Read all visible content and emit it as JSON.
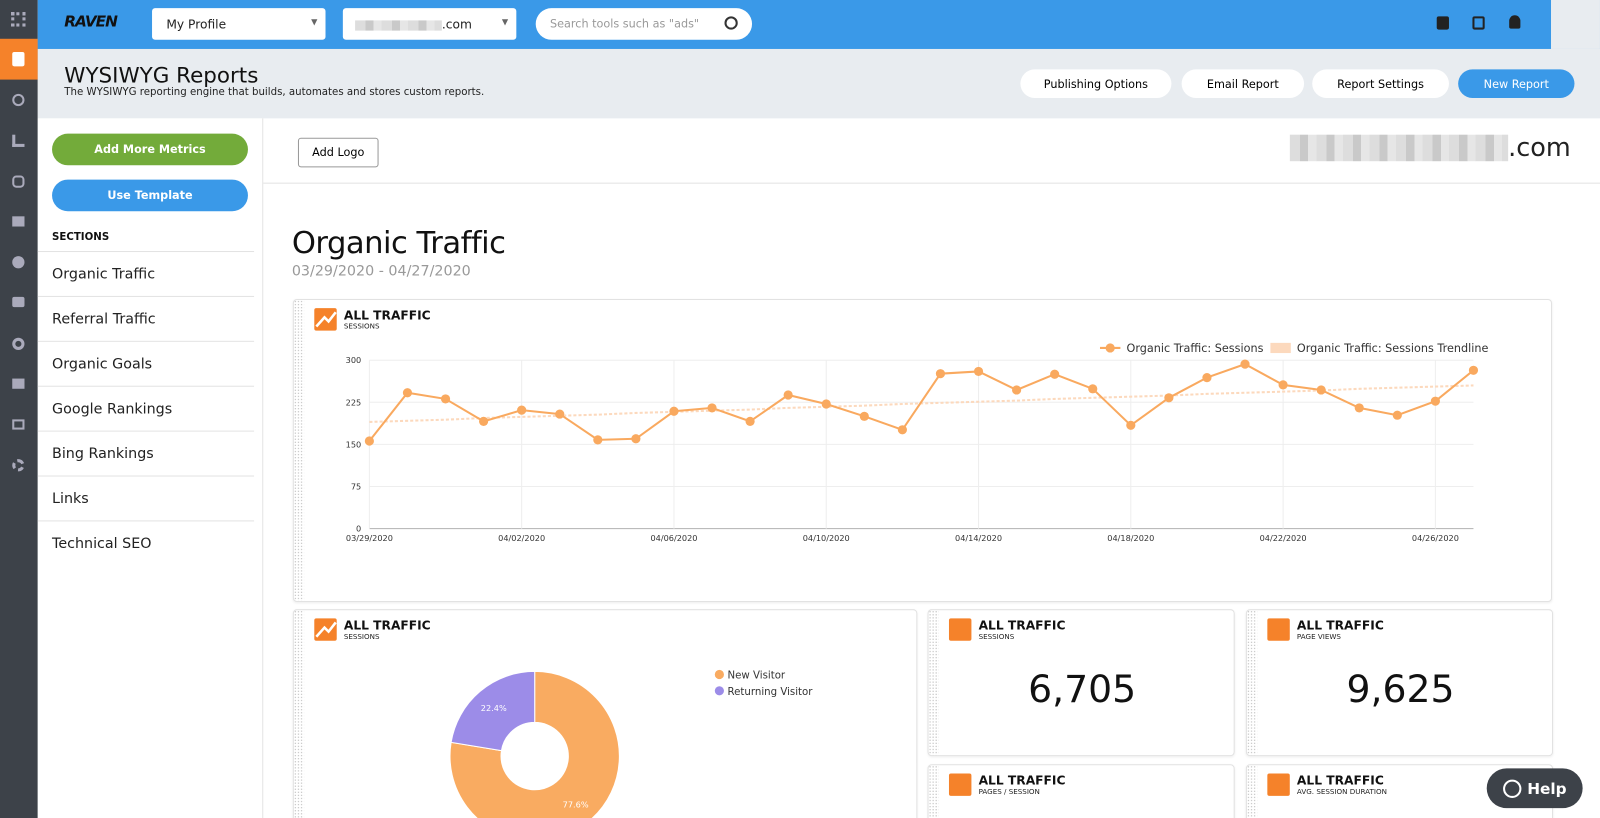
{
  "topbar": {
    "logo": "RAVEN",
    "profile_select": "My Profile",
    "domain_select": ".com",
    "search_placeholder": "Search tools such as \"ads\""
  },
  "header": {
    "title": "WYSIWYG Reports",
    "subtitle": "The WYSIWYG reporting engine that builds, automates and stores custom reports.",
    "buttons": [
      "Publishing Options",
      "Email Report",
      "Report Settings",
      "New Report"
    ]
  },
  "sidebar": {
    "buttons": [
      "Add More Metrics",
      "Use Template"
    ],
    "sections_heading": "SECTIONS",
    "sections": [
      "Organic Traffic",
      "Referral Traffic",
      "Organic Goals",
      "Google Rankings",
      "Bing Rankings",
      "Links",
      "Technical SEO"
    ]
  },
  "report": {
    "add_logo": "Add Logo",
    "domain": ".com",
    "heading": "Organic Traffic",
    "date_range": "03/29/2020 - 04/27/2020"
  },
  "chart_data": [
    {
      "type": "line",
      "title": "ALL TRAFFIC",
      "subtitle": "SESSIONS",
      "categories": [
        "03/29/2020",
        null,
        null,
        null,
        "04/02/2020",
        null,
        null,
        null,
        "04/06/2020",
        null,
        null,
        null,
        "04/10/2020",
        null,
        null,
        null,
        "04/14/2020",
        null,
        null,
        null,
        "04/18/2020",
        null,
        null,
        null,
        "04/22/2020",
        null,
        null,
        null,
        "04/26/2020",
        null
      ],
      "series": [
        {
          "name": "Organic Traffic: Sessions",
          "color": "#f9a95f",
          "values": [
            156,
            242,
            231,
            191,
            211,
            204,
            158,
            160,
            209,
            215,
            191,
            238,
            222,
            200,
            176,
            276,
            280,
            247,
            275,
            249,
            184,
            233,
            269,
            293,
            256,
            247,
            215,
            202,
            227,
            282
          ]
        },
        {
          "name": "Organic Traffic: Sessions Trendline",
          "color": "#fcd9bd",
          "values": [
            190,
            192,
            194,
            197,
            199,
            201,
            203,
            206,
            208,
            210,
            212,
            215,
            217,
            219,
            222,
            224,
            226,
            228,
            231,
            233,
            235,
            237,
            240,
            242,
            244,
            246,
            249,
            251,
            253,
            255
          ]
        }
      ],
      "ylim": [
        0,
        300
      ],
      "yticks": [
        0,
        75,
        150,
        225,
        300
      ],
      "grid": true,
      "legend": "top-right"
    },
    {
      "type": "pie",
      "title": "ALL TRAFFIC",
      "subtitle": "SESSIONS",
      "categories": [
        "New Visitor",
        "Returning Visitor"
      ],
      "values": [
        77.6,
        22.4
      ],
      "value_labels": [
        "77.6%",
        "22.4%"
      ],
      "colors": [
        "#f9ab61",
        "#9c8ce8"
      ],
      "donut": true,
      "legend": "top-right"
    }
  ],
  "kpis": [
    {
      "title": "ALL TRAFFIC",
      "subtitle": "SESSIONS",
      "value": "6,705"
    },
    {
      "title": "ALL TRAFFIC",
      "subtitle": "PAGE VIEWS",
      "value": "9,625"
    },
    {
      "title": "ALL TRAFFIC",
      "subtitle": "PAGES / SESSION"
    },
    {
      "title": "ALL TRAFFIC",
      "subtitle": "AVG. SESSION DURATION"
    }
  ],
  "help": "Help"
}
